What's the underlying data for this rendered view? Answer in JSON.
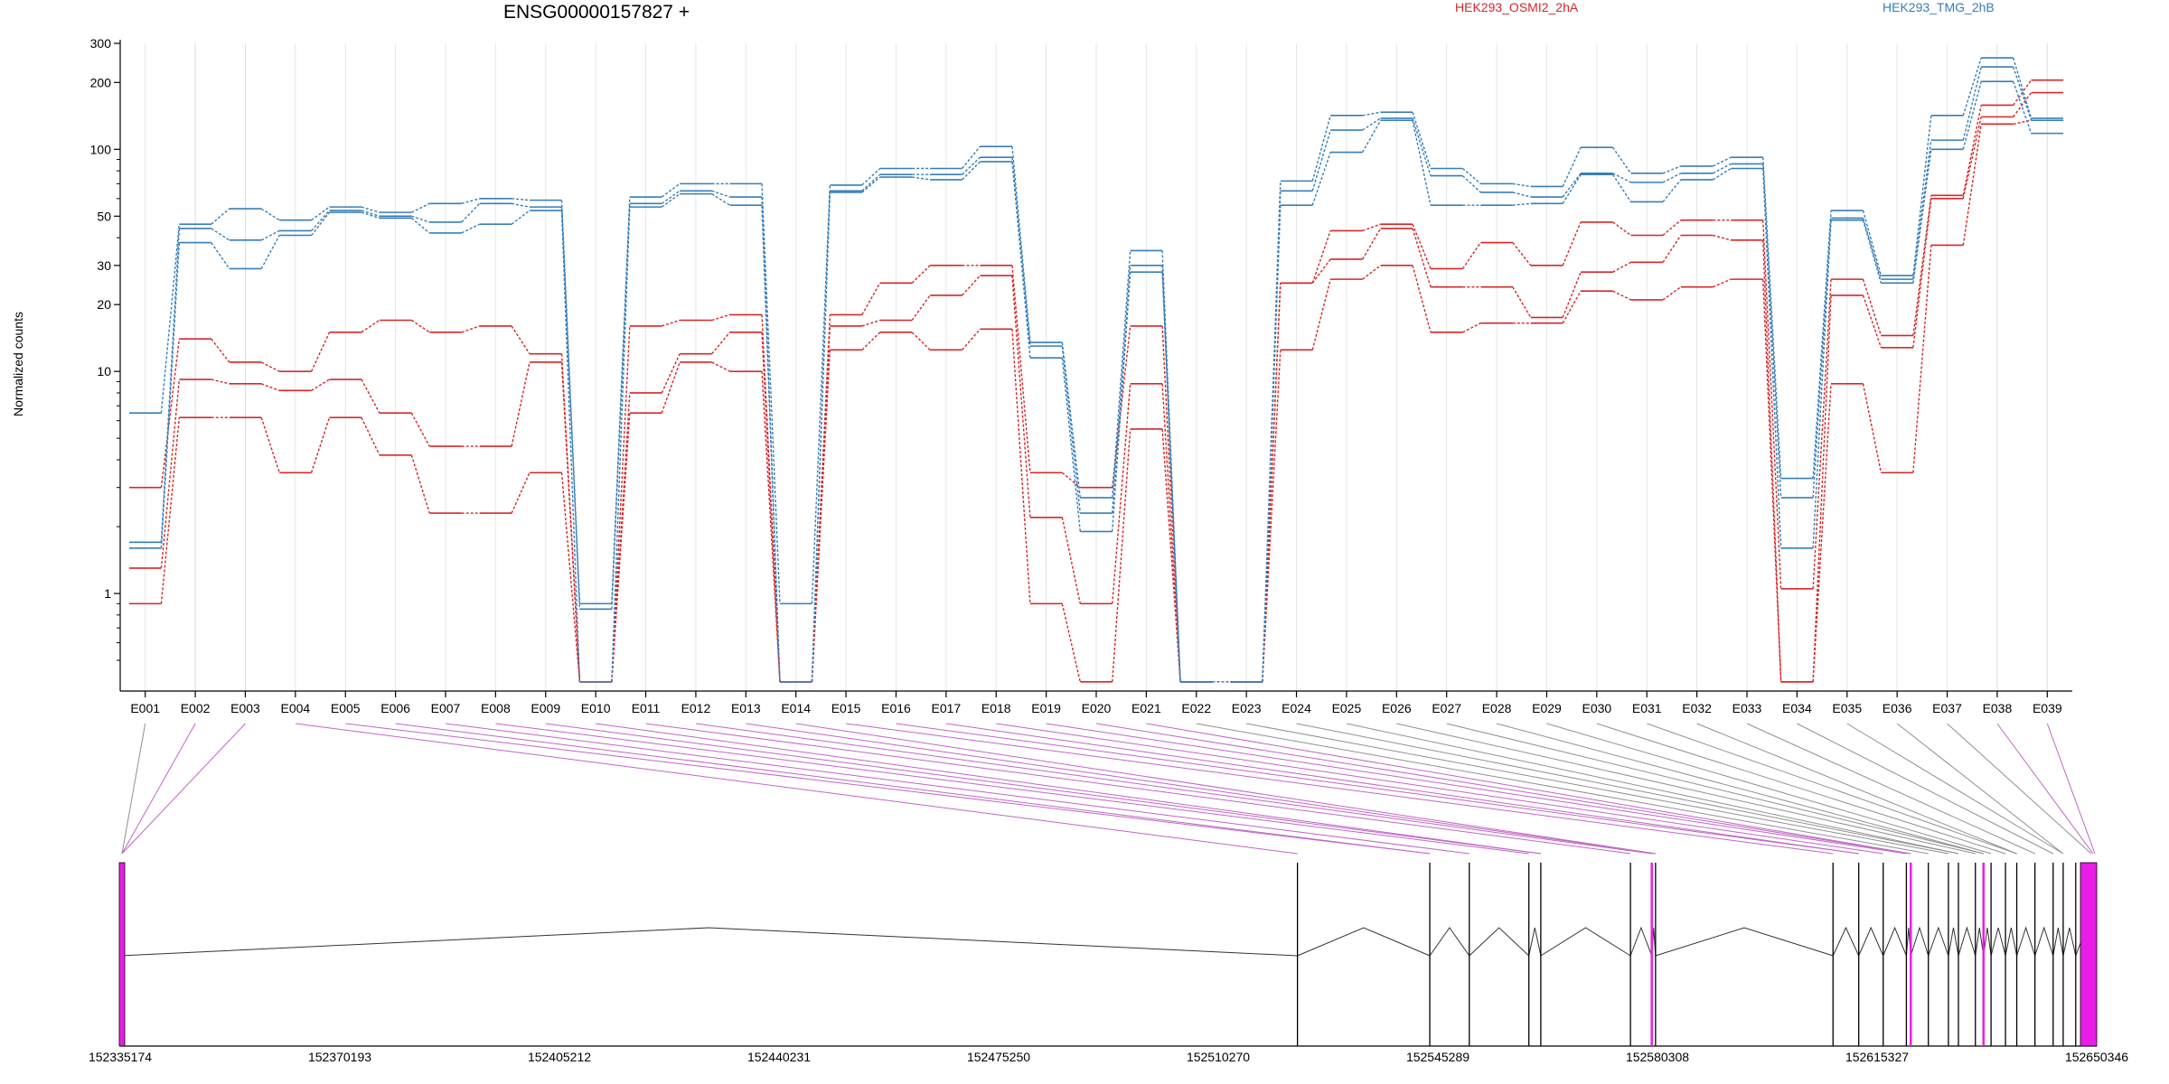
{
  "chart_data": {
    "type": "line",
    "title": "ENSG00000157827 +",
    "ylabel": "Normalized counts",
    "yscale": "log",
    "yticks": [
      "1",
      "10",
      "20",
      "30",
      "50",
      "100",
      "200",
      "300"
    ],
    "categories": [
      "E001",
      "E002",
      "E003",
      "E004",
      "E005",
      "E006",
      "E007",
      "E008",
      "E009",
      "E010",
      "E011",
      "E012",
      "E013",
      "E014",
      "E015",
      "E016",
      "E017",
      "E018",
      "E019",
      "E020",
      "E021",
      "E022",
      "E023",
      "E024",
      "E025",
      "E026",
      "E027",
      "E028",
      "E029",
      "E030",
      "E031",
      "E032",
      "E033",
      "E034",
      "E035",
      "E036",
      "E037",
      "E038",
      "E039"
    ],
    "series": [
      {
        "name": "HEK293_OSMI2_2hA",
        "color": "#d62728",
        "values": [
          3,
          14,
          11,
          10,
          15,
          17,
          15,
          16,
          12,
          0.4,
          16,
          17,
          18,
          0.4,
          18,
          25,
          30,
          30,
          3.5,
          3,
          16,
          0.4,
          0.4,
          25,
          43,
          46,
          29,
          38,
          30,
          47,
          41,
          48,
          48,
          1.05,
          26,
          14.5,
          62,
          158,
          205
        ]
      },
      {
        "name": "HEK293_OSMI2_2hA",
        "color": "#d62728",
        "values": [
          1.3,
          9.2,
          8.8,
          8.2,
          9.2,
          6.5,
          4.6,
          4.6,
          11,
          0.4,
          8,
          12,
          15,
          0.4,
          16,
          17,
          22,
          27,
          2.2,
          0.9,
          8.8,
          0.4,
          0.4,
          25,
          32,
          44,
          24,
          24,
          17.5,
          28,
          31,
          41,
          39,
          0.4,
          22,
          12.8,
          60,
          140,
          180
        ]
      },
      {
        "name": "HEK293_OSMI2_2hA",
        "color": "#d62728",
        "values": [
          0.9,
          6.2,
          6.2,
          3.5,
          6.2,
          4.2,
          2.3,
          2.3,
          3.5,
          0.4,
          6.5,
          11,
          10,
          0.4,
          12.5,
          15,
          12.5,
          15.5,
          0.9,
          0.4,
          5.5,
          0.4,
          0.4,
          12.5,
          26,
          30,
          15,
          16.5,
          16.5,
          23,
          21,
          24,
          26,
          0.4,
          8.8,
          3.5,
          37,
          130,
          135
        ]
      },
      {
        "name": "HEK293_TMG_2hB",
        "color": "#377eb8",
        "values": [
          6.5,
          46,
          54,
          48,
          55,
          52,
          57,
          60,
          59,
          0.9,
          61,
          70,
          70,
          0.9,
          69,
          82,
          82,
          103,
          13.5,
          2.7,
          35,
          0.4,
          0.4,
          72,
          142,
          147,
          82,
          70,
          68,
          102,
          78,
          84,
          92,
          3.3,
          53,
          27,
          142,
          258,
          138
        ]
      },
      {
        "name": "HEK293_TMG_2hB",
        "color": "#377eb8",
        "values": [
          1.7,
          44,
          39,
          43,
          53,
          50,
          47,
          57,
          55,
          0.85,
          57,
          65,
          61,
          0.4,
          65,
          77,
          77,
          92,
          13,
          2.3,
          30,
          0.4,
          0.4,
          65,
          122,
          138,
          76,
          64,
          61,
          78,
          71,
          78,
          86,
          2.7,
          49,
          26,
          110,
          235,
          135
        ]
      },
      {
        "name": "HEK293_TMG_2hB",
        "color": "#377eb8",
        "values": [
          1.6,
          38,
          29,
          41,
          52,
          49,
          42,
          46,
          53,
          0.4,
          55,
          63,
          56,
          0.4,
          64,
          75,
          73,
          88,
          11.5,
          1.9,
          28,
          0.4,
          0.4,
          56,
          97,
          135,
          56,
          56,
          57,
          77,
          58,
          73,
          82,
          1.6,
          48,
          25,
          100,
          202,
          118
        ]
      }
    ],
    "gene_model": {
      "coordinate_labels": [
        "152335174",
        "152370193",
        "152405212",
        "152440231",
        "152475250",
        "152510270",
        "152545289",
        "152580308",
        "152615327",
        "152650346"
      ],
      "coord_start": 152335174,
      "coord_end": 152650346,
      "exons": [
        152335174,
        152522900,
        152544000,
        152550300,
        152559800,
        152561700,
        152576000,
        152579400,
        152580000,
        152608300,
        152612400,
        152616300,
        152620000,
        152620700,
        152623500,
        152626700,
        152628300,
        152631000,
        152632300,
        152633500,
        152635800,
        152637600,
        152640500,
        152643400,
        152645000,
        152647000,
        152650346
      ],
      "highlight_color": "#e81ee8"
    }
  }
}
